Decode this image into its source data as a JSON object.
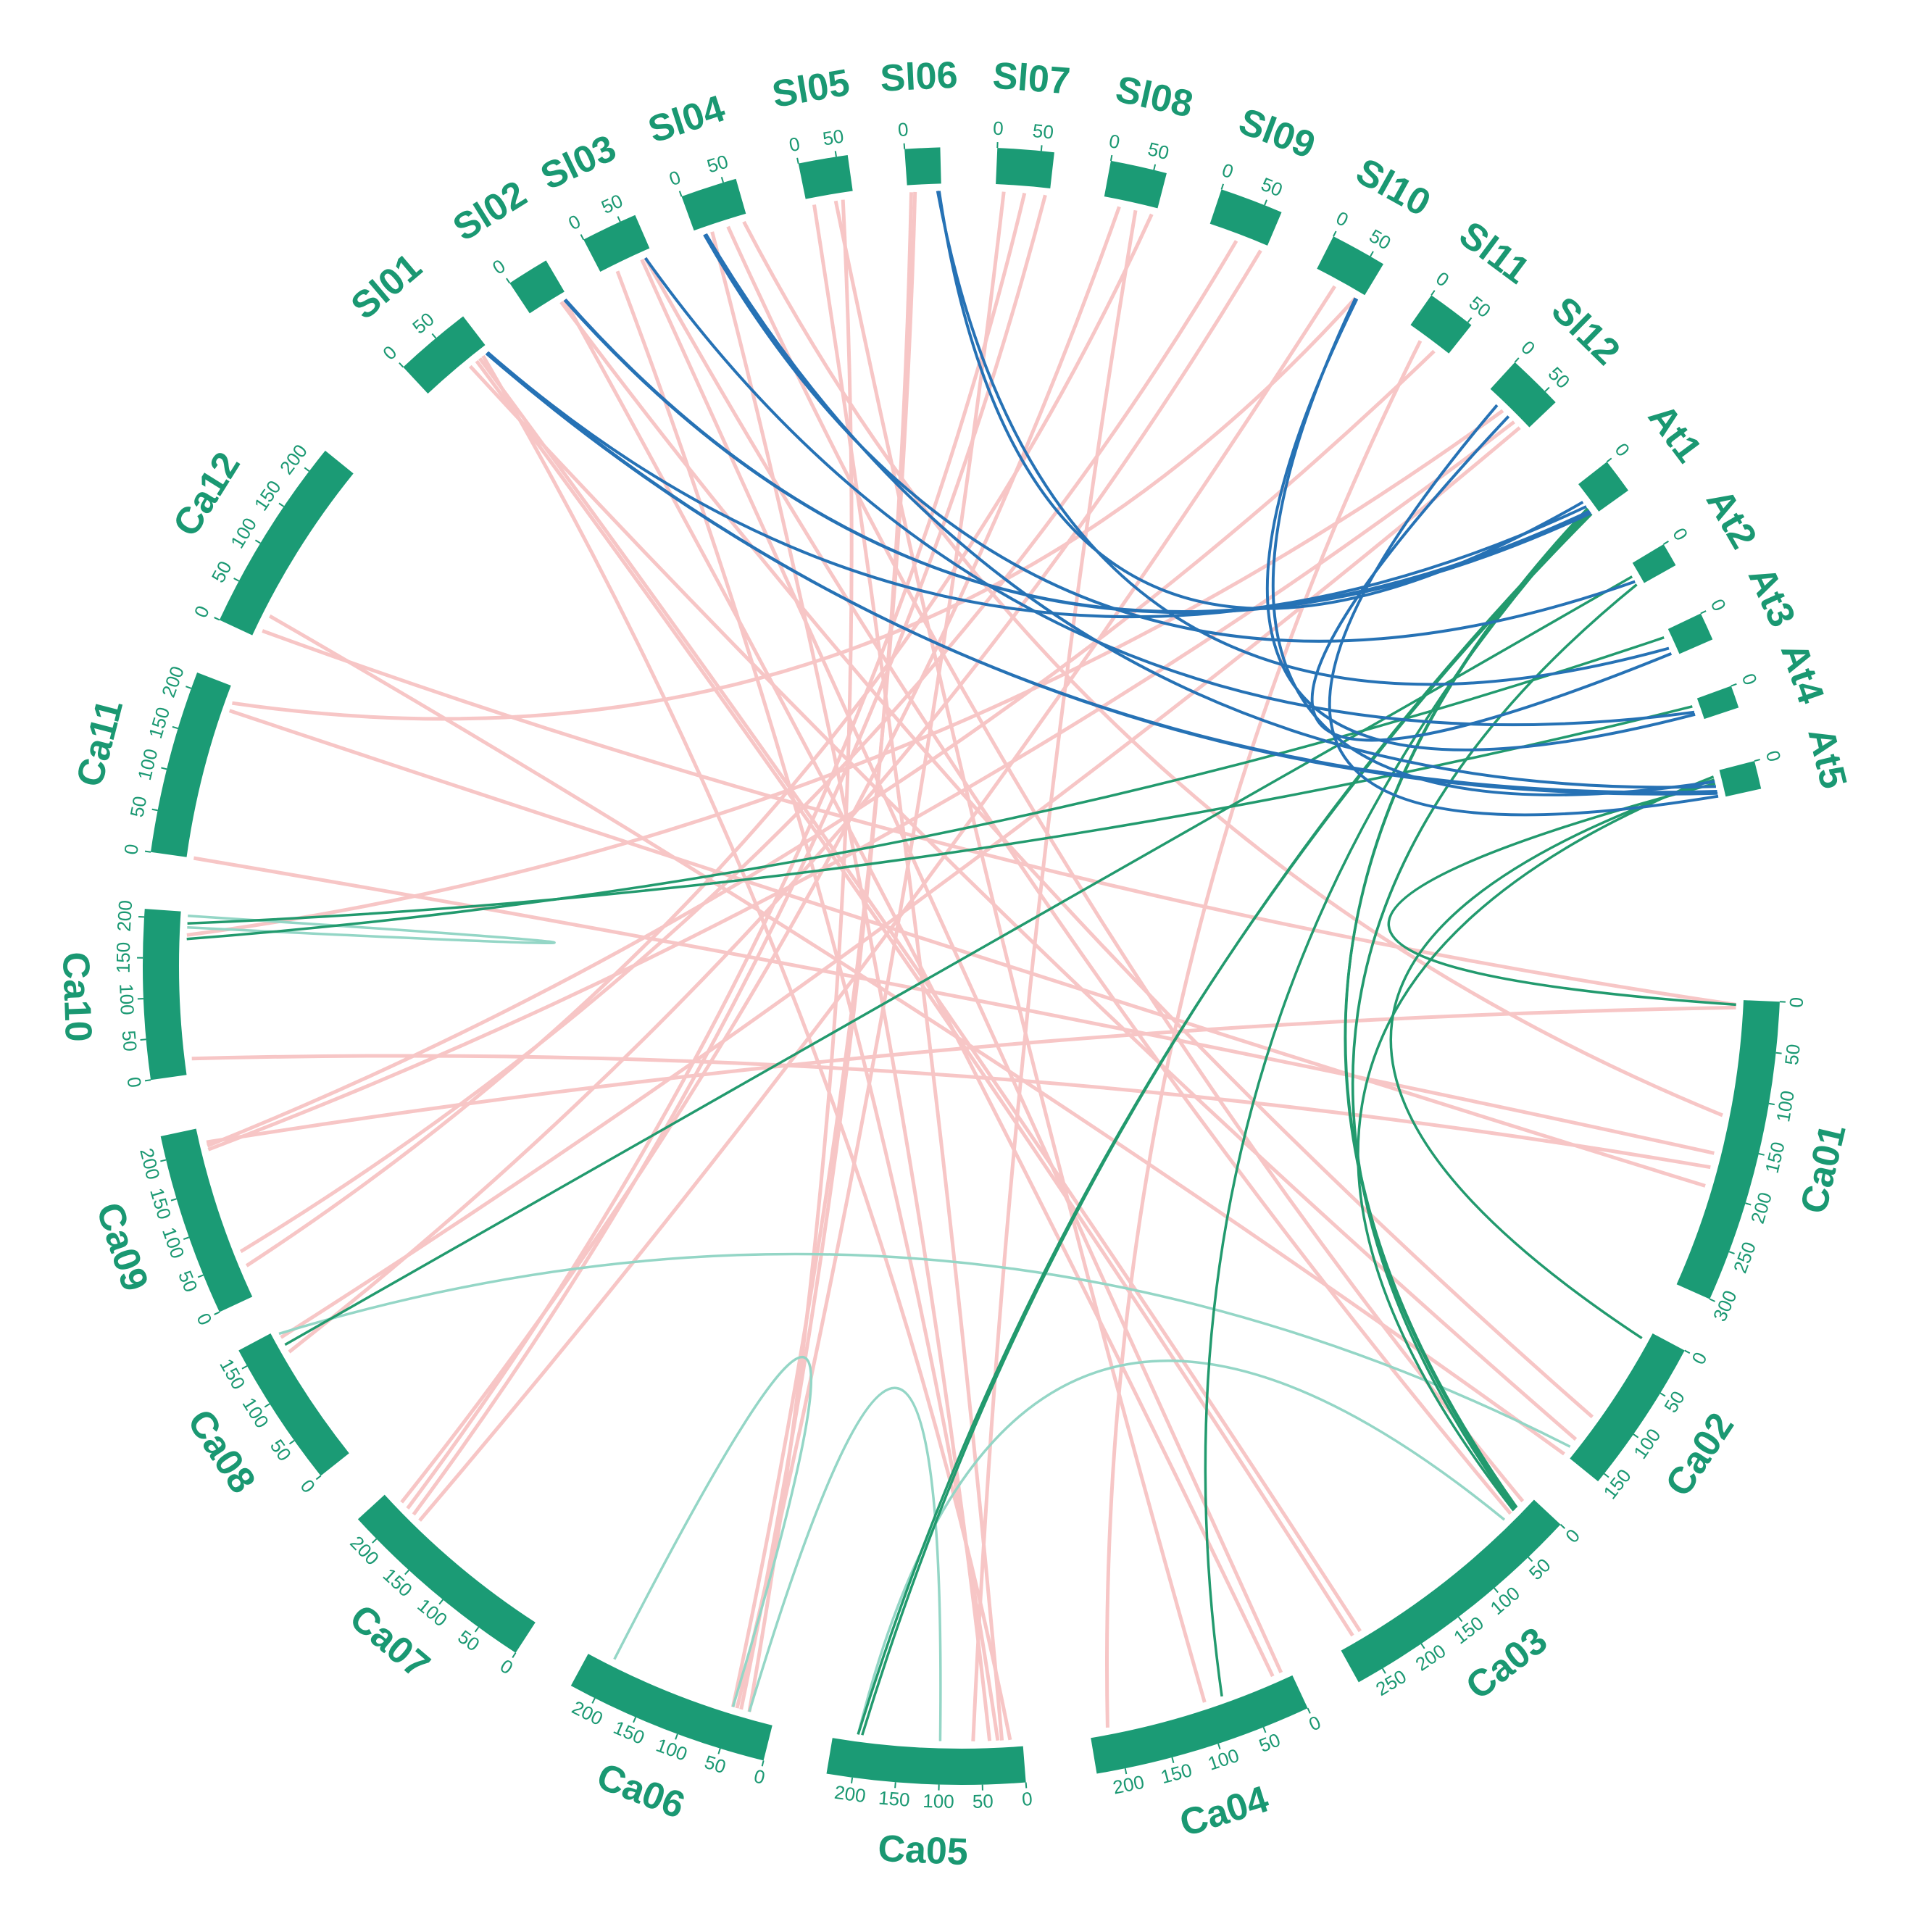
{
  "colors": {
    "chromosome": "#1b9b75",
    "label": "#1a9872",
    "link_ca_sl": "#f7c6c6",
    "link_sl_at": "#2672b5",
    "link_ca_at": "#229a6e",
    "link_ca_ca": "#94d6c6"
  },
  "chromosomes": [
    {
      "id": "Ca01",
      "size": 300,
      "ticks": [
        "0",
        "50",
        "100",
        "150",
        "200",
        "250",
        "300"
      ]
    },
    {
      "id": "Ca02",
      "size": 160,
      "ticks": [
        "0",
        "50",
        "100",
        "150"
      ]
    },
    {
      "id": "Ca03",
      "size": 280,
      "ticks": [
        "0",
        "50",
        "100",
        "150",
        "200",
        "250"
      ]
    },
    {
      "id": "Ca04",
      "size": 230,
      "ticks": [
        "0",
        "50",
        "100",
        "150",
        "200"
      ]
    },
    {
      "id": "Ca05",
      "size": 230,
      "ticks": [
        "0",
        "50",
        "100",
        "150",
        "200"
      ]
    },
    {
      "id": "Ca06",
      "size": 230,
      "ticks": [
        "0",
        "50",
        "100",
        "150",
        "200"
      ]
    },
    {
      "id": "Ca07",
      "size": 230,
      "ticks": [
        "0",
        "50",
        "100",
        "150",
        "200"
      ]
    },
    {
      "id": "Ca08",
      "size": 170,
      "ticks": [
        "0",
        "50",
        "100",
        "150"
      ]
    },
    {
      "id": "Ca09",
      "size": 230,
      "ticks": [
        "0",
        "50",
        "100",
        "150",
        "200"
      ]
    },
    {
      "id": "Ca10",
      "size": 210,
      "ticks": [
        "0",
        "50",
        "100",
        "150",
        "200"
      ]
    },
    {
      "id": "Ca11",
      "size": 220,
      "ticks": [
        "0",
        "50",
        "100",
        "150",
        "200"
      ]
    },
    {
      "id": "Ca12",
      "size": 230,
      "ticks": [
        "0",
        "50",
        "100",
        "150",
        "200"
      ]
    },
    {
      "id": "Sl01",
      "size": 90,
      "ticks": [
        "0",
        "50"
      ]
    },
    {
      "id": "Sl02",
      "size": 50,
      "ticks": [
        "0"
      ]
    },
    {
      "id": "Sl03",
      "size": 70,
      "ticks": [
        "0",
        "50"
      ]
    },
    {
      "id": "Sl04",
      "size": 65,
      "ticks": [
        "0",
        "50"
      ]
    },
    {
      "id": "Sl05",
      "size": 65,
      "ticks": [
        "0",
        "50"
      ]
    },
    {
      "id": "Sl06",
      "size": 45,
      "ticks": [
        "0"
      ]
    },
    {
      "id": "Sl07",
      "size": 65,
      "ticks": [
        "0",
        "50"
      ]
    },
    {
      "id": "Sl08",
      "size": 65,
      "ticks": [
        "0",
        "50"
      ]
    },
    {
      "id": "Sl09",
      "size": 70,
      "ticks": [
        "0",
        "50"
      ]
    },
    {
      "id": "Sl10",
      "size": 68,
      "ticks": [
        "0",
        "50"
      ]
    },
    {
      "id": "Sl11",
      "size": 55,
      "ticks": [
        "0",
        "50"
      ]
    },
    {
      "id": "Sl12",
      "size": 68,
      "ticks": [
        "0",
        "50"
      ]
    },
    {
      "id": "At1",
      "size": 30,
      "ticks": [
        "0"
      ]
    },
    {
      "id": "At2",
      "size": 20,
      "ticks": [
        "0"
      ]
    },
    {
      "id": "At3",
      "size": 23,
      "ticks": [
        "0"
      ]
    },
    {
      "id": "At4",
      "size": 18,
      "ticks": [
        "0"
      ]
    },
    {
      "id": "At5",
      "size": 27,
      "ticks": [
        "0"
      ]
    }
  ],
  "links": [
    {
      "type": "ca_sl",
      "a": "Ca12",
      "ap": 10,
      "b": "Ca01",
      "bp": 5
    },
    {
      "type": "ca_sl",
      "a": "Sl01",
      "ap": 70,
      "b": "Ca03",
      "bp": 260
    },
    {
      "type": "ca_sl",
      "a": "Sl01",
      "ap": 75,
      "b": "Ca03",
      "bp": 250
    },
    {
      "type": "ca_sl",
      "a": "Sl01",
      "ap": 80,
      "b": "Ca05",
      "bp": 15
    },
    {
      "type": "ca_sl",
      "a": "Sl02",
      "ap": 45,
      "b": "Ca04",
      "bp": 20
    },
    {
      "type": "ca_sl",
      "a": "Sl02",
      "ap": 40,
      "b": "Ca02",
      "bp": 110
    },
    {
      "type": "ca_sl",
      "a": "Sl03",
      "ap": 20,
      "b": "Ca05",
      "bp": 30
    },
    {
      "type": "ca_sl",
      "a": "Sl03",
      "ap": 55,
      "b": "Ca04",
      "bp": 10
    },
    {
      "type": "ca_sl",
      "a": "Sl04",
      "ap": 20,
      "b": "Ca05",
      "bp": 40
    },
    {
      "type": "ca_sl",
      "a": "Sl04",
      "ap": 60,
      "b": "Ca01",
      "bp": 120
    },
    {
      "type": "ca_sl",
      "a": "Sl05",
      "ap": 10,
      "b": "Ca05",
      "bp": 25
    },
    {
      "type": "ca_sl",
      "a": "Sl05",
      "ap": 50,
      "b": "Ca06",
      "bp": 30
    },
    {
      "type": "ca_sl",
      "a": "Sl06",
      "ap": 5,
      "b": "Ca06",
      "bp": 40
    },
    {
      "type": "ca_sl",
      "a": "Sl07",
      "ap": 10,
      "b": "Ca06",
      "bp": 45
    },
    {
      "type": "ca_sl",
      "a": "Sl07",
      "ap": 35,
      "b": "Ca07",
      "bp": 200
    },
    {
      "type": "ca_sl",
      "a": "Sl07",
      "ap": 60,
      "b": "Ca07",
      "bp": 190
    },
    {
      "type": "ca_sl",
      "a": "Sl08",
      "ap": 20,
      "b": "Ca07",
      "bp": 210
    },
    {
      "type": "ca_sl",
      "a": "Sl08",
      "ap": 60,
      "b": "Ca09",
      "bp": 40
    },
    {
      "type": "ca_sl",
      "a": "Sl09",
      "ap": 35,
      "b": "Ca09",
      "bp": 60
    },
    {
      "type": "ca_sl",
      "a": "Sl09",
      "ap": 65,
      "b": "Ca08",
      "bp": 140
    },
    {
      "type": "ca_sl",
      "a": "Sl10",
      "ap": 60,
      "b": "Ca11",
      "bp": 200
    },
    {
      "type": "ca_sl",
      "a": "Sl11",
      "ap": 20,
      "b": "Ca04",
      "bp": 210
    },
    {
      "type": "ca_sl",
      "a": "Sl12",
      "ap": 30,
      "b": "Ca10",
      "bp": 180
    },
    {
      "type": "ca_sl",
      "a": "Sl12",
      "ap": 50,
      "b": "Ca09",
      "bp": 200
    },
    {
      "type": "ca_sl",
      "a": "Ca12",
      "ap": 30,
      "b": "Ca02",
      "bp": 160
    },
    {
      "type": "ca_sl",
      "a": "Ca11",
      "ap": 0,
      "b": "Ca01",
      "bp": 160
    },
    {
      "type": "ca_sl",
      "a": "Ca11",
      "ap": 190,
      "b": "Ca01",
      "bp": 195
    },
    {
      "type": "ca_sl",
      "a": "Ca10",
      "ap": 20,
      "b": "Ca01",
      "bp": 175
    },
    {
      "type": "ca_sl",
      "a": "Ca09",
      "ap": 210,
      "b": "Ca01",
      "bp": 8
    },
    {
      "type": "ca_sl",
      "a": "Ca09",
      "ap": 205,
      "b": "Sl11",
      "bp": 40
    },
    {
      "type": "ca_sl",
      "a": "Ca03",
      "ap": 10,
      "b": "Sl04",
      "bp": 40
    },
    {
      "type": "ca_sl",
      "a": "Ca03",
      "ap": 30,
      "b": "Sl03",
      "bp": 60
    },
    {
      "type": "ca_sl",
      "a": "Ca06",
      "ap": 50,
      "b": "Sl06",
      "bp": 10
    },
    {
      "type": "ca_sl",
      "a": "Ca05",
      "ap": 60,
      "b": "Sl08",
      "bp": 40
    },
    {
      "type": "ca_sl",
      "a": "Ca07",
      "ap": 180,
      "b": "Sl10",
      "bp": 30
    },
    {
      "type": "ca_sl",
      "a": "Ca08",
      "ap": 160,
      "b": "Sl12",
      "bp": 60
    },
    {
      "type": "ca_sl",
      "a": "Ca04",
      "ap": 100,
      "b": "Sl05",
      "bp": 40
    },
    {
      "type": "ca_sl",
      "a": "Ca02",
      "ap": 140,
      "b": "Sl01",
      "bp": 60
    },
    {
      "type": "sl_at",
      "a": "Sl01",
      "ap": 85,
      "b": "At5",
      "bp": 20
    },
    {
      "type": "sl_at",
      "a": "Sl01",
      "ap": 86,
      "b": "At5",
      "bp": 22
    },
    {
      "type": "sl_at",
      "a": "Sl01",
      "ap": 87,
      "b": "At1",
      "bp": 20
    },
    {
      "type": "sl_at",
      "a": "Sl02",
      "ap": 45,
      "b": "At1",
      "bp": 25
    },
    {
      "type": "sl_at",
      "a": "Sl02",
      "ap": 46,
      "b": "At1",
      "bp": 27
    },
    {
      "type": "sl_at",
      "a": "Sl03",
      "ap": 60,
      "b": "At4",
      "bp": 10
    },
    {
      "type": "sl_at",
      "a": "Sl04",
      "ap": 10,
      "b": "At2",
      "bp": 15
    },
    {
      "type": "sl_at",
      "a": "Sl04",
      "ap": 12,
      "b": "At5",
      "bp": 15
    },
    {
      "type": "sl_at",
      "a": "Sl06",
      "ap": 40,
      "b": "At3",
      "bp": 15
    },
    {
      "type": "sl_at",
      "a": "Sl06",
      "ap": 42,
      "b": "At1",
      "bp": 15
    },
    {
      "type": "sl_at",
      "a": "Sl10",
      "ap": 60,
      "b": "At5",
      "bp": 10
    },
    {
      "type": "sl_at",
      "a": "Sl10",
      "ap": 62,
      "b": "At4",
      "bp": 12
    },
    {
      "type": "sl_at",
      "a": "Sl12",
      "ap": 20,
      "b": "At5",
      "bp": 25
    },
    {
      "type": "sl_at",
      "a": "Sl12",
      "ap": 40,
      "b": "At3",
      "bp": 20
    },
    {
      "type": "ca_at",
      "a": "Ca10",
      "ap": 195,
      "b": "At4",
      "bp": 5
    },
    {
      "type": "ca_at",
      "a": "Ca10",
      "ap": 175,
      "b": "At3",
      "bp": 5
    },
    {
      "type": "ca_at",
      "a": "Ca08",
      "ap": 150,
      "b": "At2",
      "bp": 10
    },
    {
      "type": "ca_at",
      "a": "Ca05",
      "ap": 200,
      "b": "At1",
      "bp": 28
    },
    {
      "type": "ca_at",
      "a": "Ca05",
      "ap": 195,
      "b": "At1",
      "bp": 26
    },
    {
      "type": "ca_at",
      "a": "Ca04",
      "ap": 80,
      "b": "At1",
      "bp": 24
    },
    {
      "type": "ca_at",
      "a": "Ca03",
      "ap": 20,
      "b": "At1",
      "bp": 22
    },
    {
      "type": "ca_at",
      "a": "Ca03",
      "ap": 22,
      "b": "At1",
      "bp": 23
    },
    {
      "type": "ca_at",
      "a": "Ca03",
      "ap": 24,
      "b": "At2",
      "bp": 18
    },
    {
      "type": "ca_at",
      "a": "Ca03",
      "ap": 25,
      "b": "At5",
      "bp": 5
    },
    {
      "type": "ca_at",
      "a": "Ca02",
      "ap": 10,
      "b": "At5",
      "bp": 8
    },
    {
      "type": "ca_at",
      "a": "Ca01",
      "ap": 5,
      "b": "At5",
      "bp": 12
    },
    {
      "type": "ca_ca",
      "a": "Ca10",
      "ap": 205,
      "b": "Ca10",
      "bp": 190
    },
    {
      "type": "ca_ca",
      "a": "Ca08",
      "ap": 165,
      "b": "Ca02",
      "bp": 150
    },
    {
      "type": "ca_ca",
      "a": "Ca06",
      "ap": 200,
      "b": "Ca06",
      "bp": 50
    },
    {
      "type": "ca_ca",
      "a": "Ca06",
      "ap": 30,
      "b": "Ca05",
      "bp": 100
    },
    {
      "type": "ca_ca",
      "a": "Ca05",
      "ap": 200,
      "b": "Ca03",
      "bp": 40
    }
  ]
}
